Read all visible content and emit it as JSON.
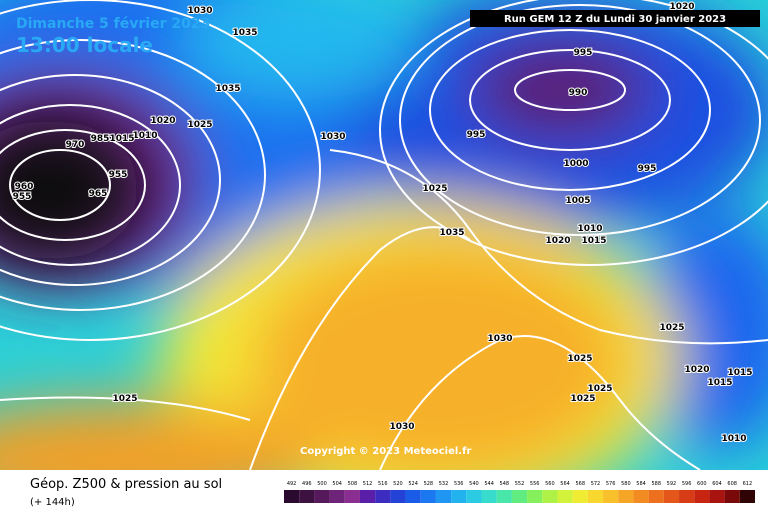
{
  "header": {
    "title": "Dimanche 5 février 2023",
    "time": "13:00 locale",
    "run": "Run GEM 12 Z du Lundi 30 janvier 2023"
  },
  "map": {
    "copyright": "Copyright © 2023 Meteociel.fr",
    "isobar_labels": [
      "1030",
      "1035",
      "1035",
      "1025",
      "1020",
      "1030",
      "1025",
      "1035",
      "995",
      "990",
      "995",
      "1000",
      "995",
      "1005",
      "1010",
      "1020",
      "1015",
      "1020",
      "1025",
      "1030",
      "1025",
      "1025",
      "1025",
      "1020",
      "1015",
      "1015",
      "1010",
      "1030",
      "1025",
      "960",
      "955",
      "965",
      "955",
      "970",
      "985",
      "1010",
      "1015"
    ]
  },
  "footer": {
    "caption": "Géop. Z500 & pression au sol",
    "lead": "(+ 144h)"
  },
  "scale": {
    "labels": [
      "492",
      "496",
      "500",
      "504",
      "508",
      "512",
      "516",
      "520",
      "524",
      "528",
      "532",
      "536",
      "540",
      "544",
      "548",
      "552",
      "556",
      "560",
      "564",
      "568",
      "572",
      "576",
      "580",
      "584",
      "588",
      "592",
      "596",
      "600",
      "604",
      "608",
      "612"
    ],
    "colors": [
      "#2a0a2e",
      "#3e1240",
      "#561a5c",
      "#6e2478",
      "#8a2e92",
      "#5a1ea8",
      "#3c2cc0",
      "#2442d6",
      "#1a5ce8",
      "#1b78f0",
      "#1e96f2",
      "#22b2ee",
      "#2ccbe4",
      "#38dccc",
      "#48e6a8",
      "#60ec80",
      "#86f05c",
      "#aef248",
      "#d2f23c",
      "#f0ec34",
      "#f8d82e",
      "#f8c02a",
      "#f6a626",
      "#f28c22",
      "#ec701e",
      "#e4561a",
      "#d83c16",
      "#c82412",
      "#aa1410",
      "#7a0a0a",
      "#300404"
    ]
  }
}
